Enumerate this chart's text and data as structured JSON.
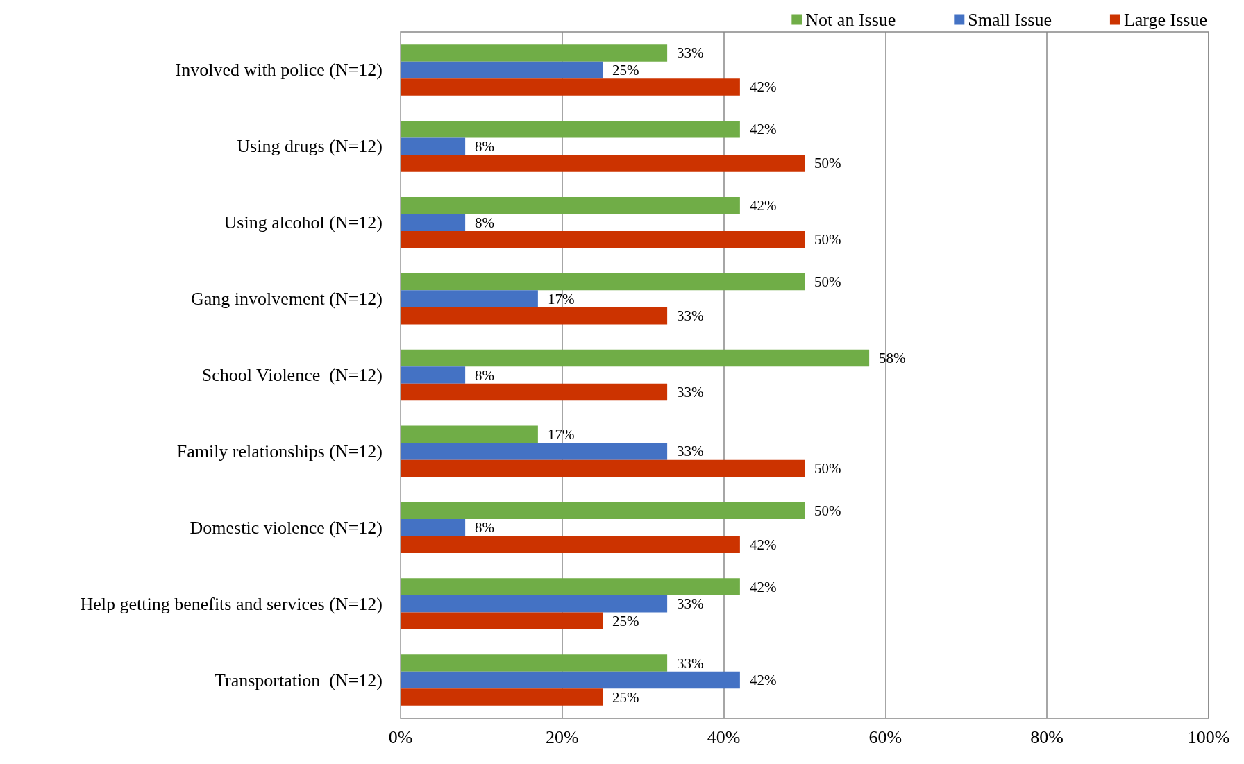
{
  "chart_data": {
    "type": "bar",
    "orientation": "horizontal",
    "categories": [
      "Involved with police (N=12)",
      "Using drugs (N=12)",
      "Using alcohol (N=12)",
      "Gang involvement (N=12)",
      "School Violence  (N=12)",
      "Family relationships (N=12)",
      "Domestic violence (N=12)",
      "Help getting benefits and services (N=12)",
      "Transportation  (N=12)"
    ],
    "series": [
      {
        "name": "Not an Issue",
        "color": "#70ad47",
        "values": [
          33,
          42,
          42,
          50,
          58,
          17,
          50,
          42,
          33
        ],
        "value_labels": [
          "33%",
          "42%",
          "42%",
          "50%",
          "58%",
          "17%",
          "50%",
          "42%",
          "33%"
        ]
      },
      {
        "name": "Small Issue",
        "color": "#4472c4",
        "values": [
          25,
          8,
          8,
          17,
          8,
          33,
          8,
          33,
          42
        ],
        "value_labels": [
          "25%",
          "8%",
          "8%",
          "17%",
          "8%",
          "33%",
          "8%",
          "33%",
          "42%"
        ]
      },
      {
        "name": "Large Issue",
        "color": "#cc3300",
        "values": [
          42,
          50,
          50,
          33,
          33,
          50,
          42,
          25,
          25
        ],
        "value_labels": [
          "42%",
          "50%",
          "50%",
          "33%",
          "33%",
          "50%",
          "42%",
          "25%",
          "25%"
        ]
      }
    ],
    "xlim": [
      0,
      100
    ],
    "xticks": [
      {
        "value": 0,
        "label": "0%"
      },
      {
        "value": 20,
        "label": "20%"
      },
      {
        "value": 40,
        "label": "40%"
      },
      {
        "value": 60,
        "label": "60%"
      },
      {
        "value": 80,
        "label": "80%"
      },
      {
        "value": 100,
        "label": "100%"
      }
    ],
    "grid": "x",
    "legend": "top right"
  }
}
